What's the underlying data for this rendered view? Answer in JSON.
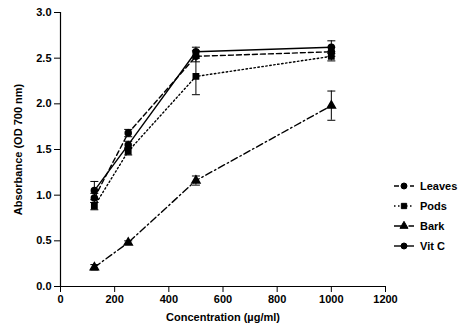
{
  "chart_data": {
    "type": "line",
    "x_label": "Concentration (µg/ml)",
    "y_label": "Absorbance (OD 700 nm)",
    "x": [
      125,
      250,
      500,
      1000
    ],
    "series": [
      {
        "name": "Leaves",
        "color": "#000000",
        "marker": "circle",
        "line_style": "dashed",
        "values": [
          0.97,
          1.68,
          2.52,
          2.57
        ],
        "errors": [
          0.05,
          0.04,
          0.06,
          0.05
        ]
      },
      {
        "name": "Pods",
        "color": "#000000",
        "marker": "square",
        "line_style": "dotted",
        "values": [
          0.88,
          1.48,
          2.3,
          2.52
        ],
        "errors": [
          0.04,
          0.04,
          0.2,
          0.05
        ]
      },
      {
        "name": "Bark",
        "color": "#000000",
        "marker": "triangle",
        "line_style": "dashdot",
        "values": [
          0.21,
          0.48,
          1.16,
          1.98
        ],
        "errors": [
          0.03,
          0.02,
          0.05,
          0.16
        ]
      },
      {
        "name": "Vit C",
        "color": "#000000",
        "marker": "circle",
        "line_style": "solid",
        "values": [
          1.05,
          1.55,
          2.57,
          2.62
        ],
        "errors": [
          0.1,
          0.04,
          0.05,
          0.07
        ]
      }
    ],
    "xlim": [
      0,
      1200
    ],
    "xticks": [
      0,
      200,
      400,
      600,
      800,
      1000,
      1200
    ],
    "ylim": [
      0,
      3.0
    ],
    "yticks": [
      {
        "value": 0,
        "label": "0.0"
      },
      {
        "value": 0.5,
        "label": "0.5"
      },
      {
        "value": 1,
        "label": "1.0"
      },
      {
        "value": 1.5,
        "label": "1.5"
      },
      {
        "value": 2,
        "label": "2.0"
      },
      {
        "value": 2.5,
        "label": "2.5"
      },
      {
        "value": 3,
        "label": "3.0"
      }
    ],
    "grid": false,
    "legend": "right"
  }
}
